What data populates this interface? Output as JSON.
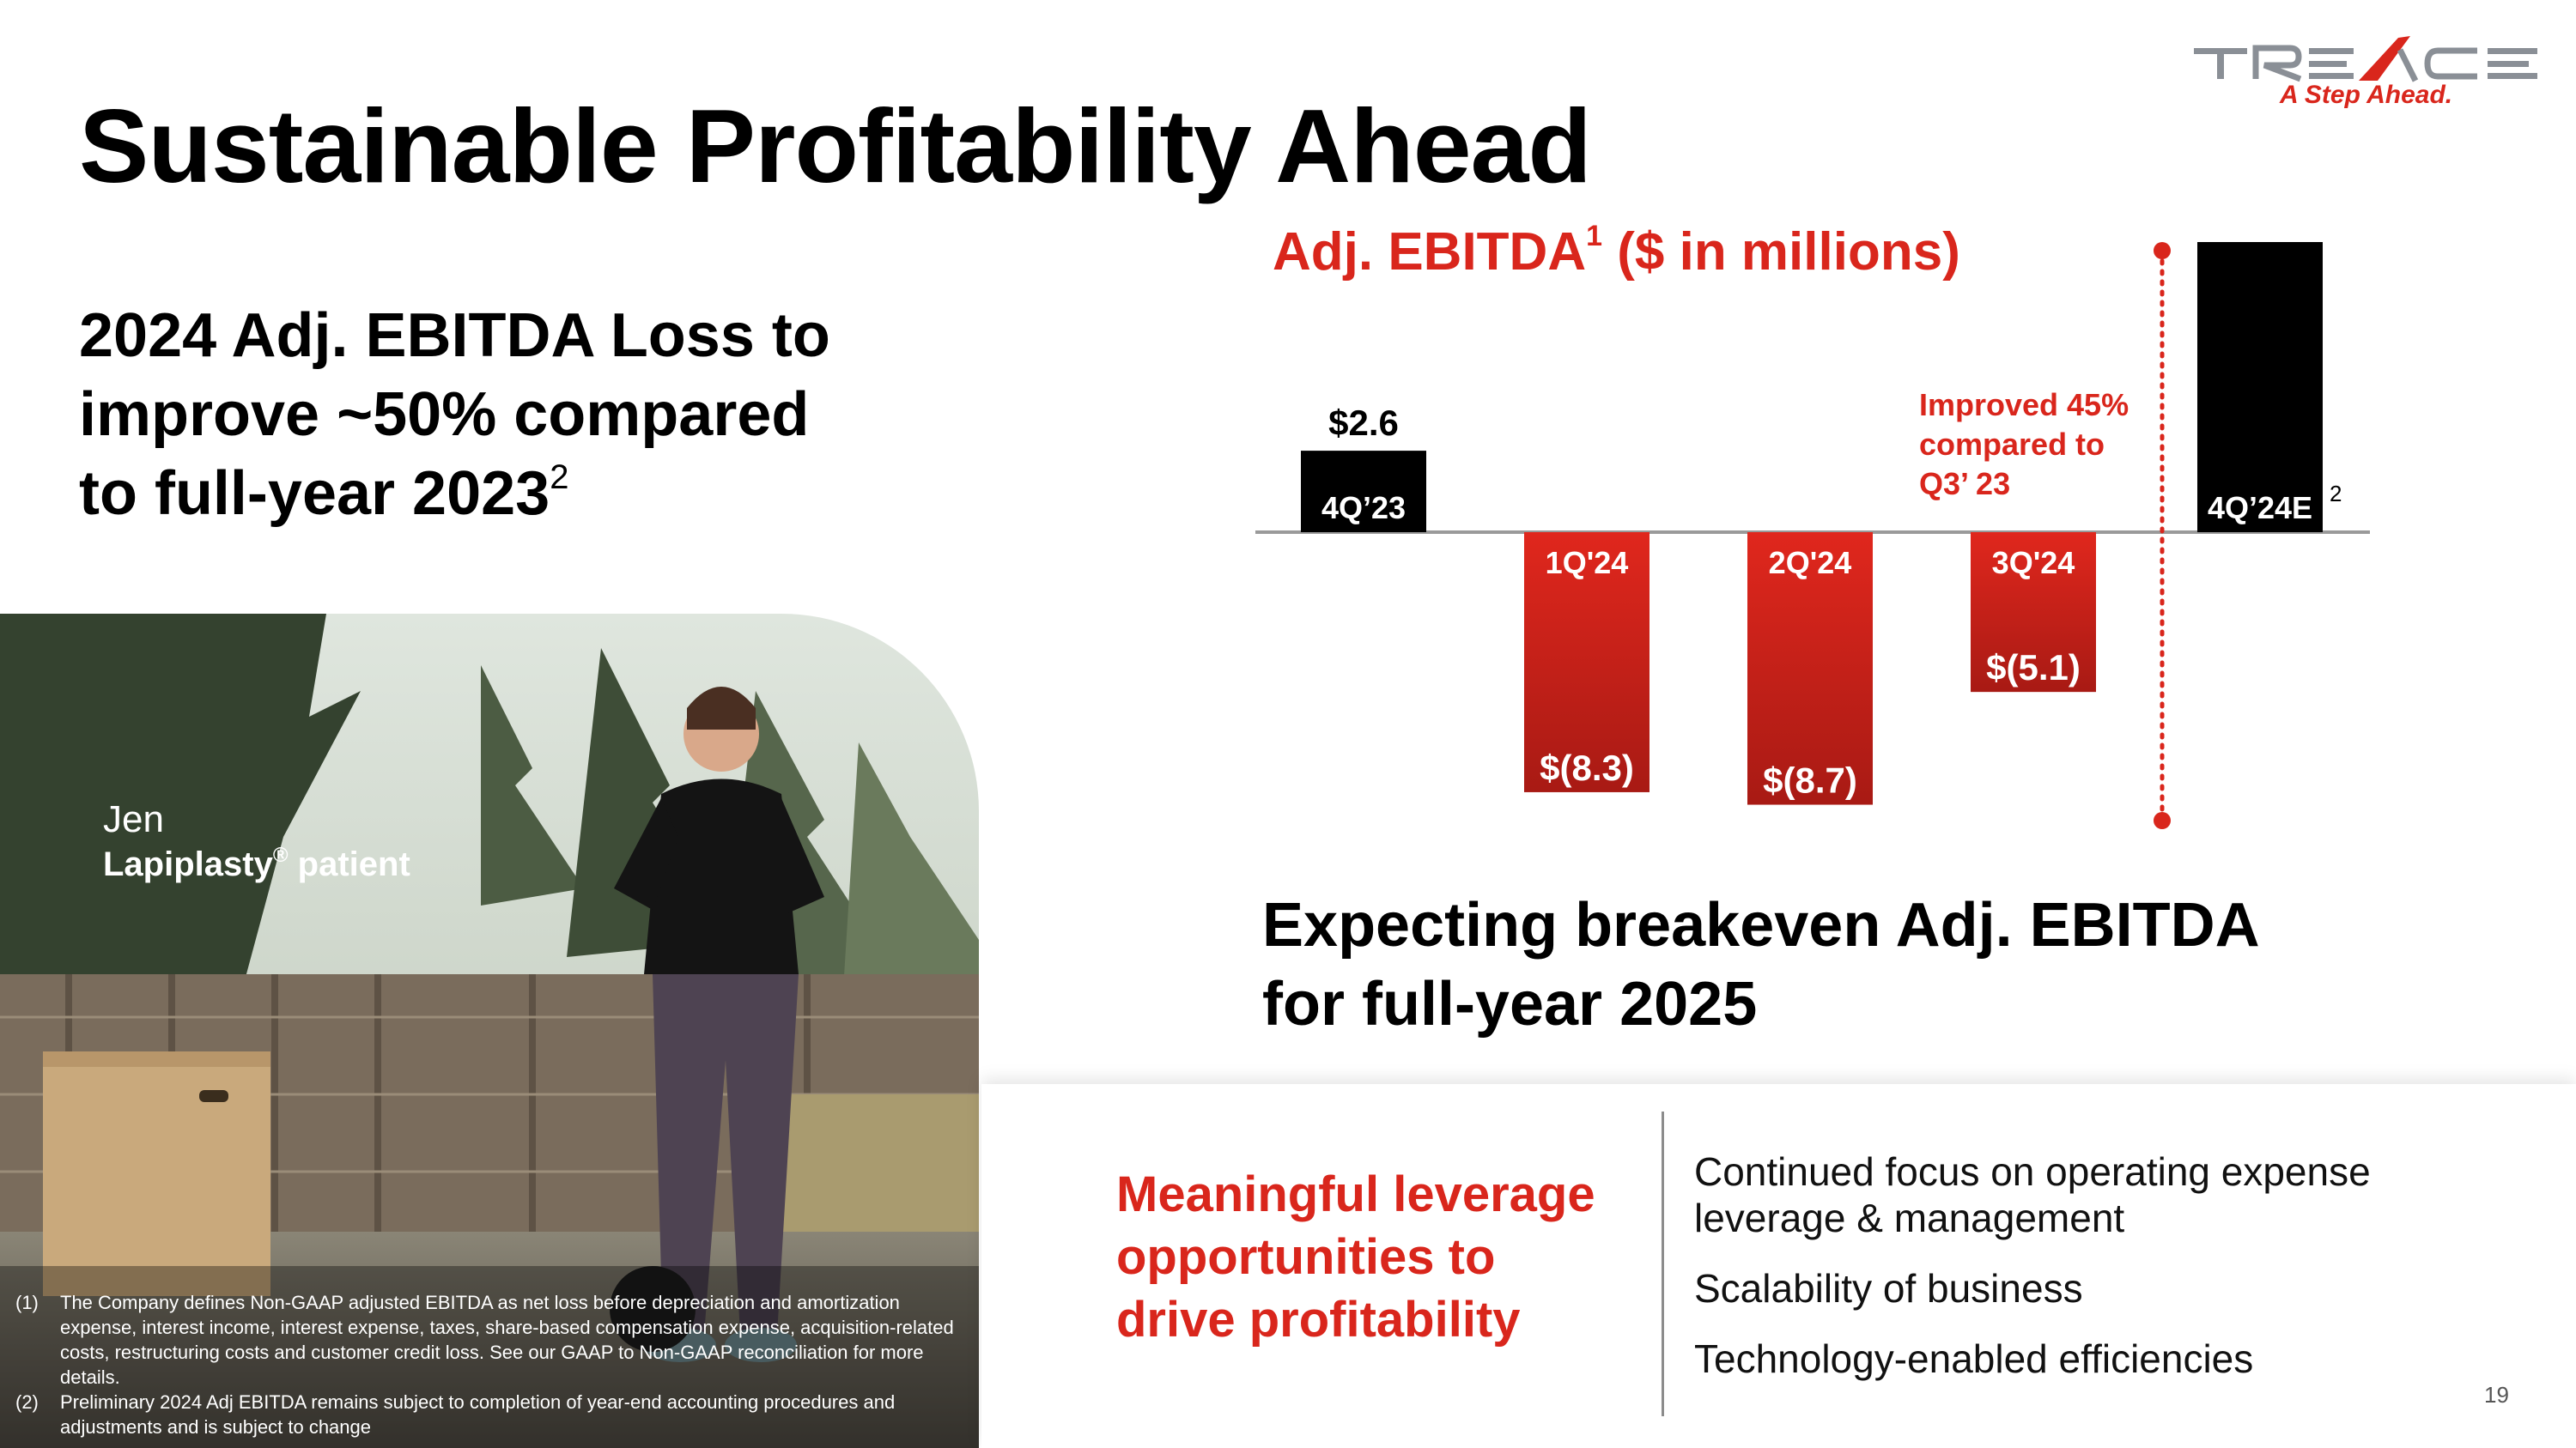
{
  "title": "Sustainable Profitability Ahead",
  "logo": {
    "brand": "TREACE",
    "tagline": "A Step Ahead.",
    "colors": {
      "gray": "#8a8f96",
      "red": "#d9261c"
    }
  },
  "headline": {
    "line1": "2024 Adj. EBITDA Loss to",
    "line2": "improve ~50% compared",
    "line3": "to full-year 2023",
    "footnote_ref": "2"
  },
  "photo_caption": {
    "name": "Jen",
    "label_pre": "Lapiplasty",
    "reg_mark": "®",
    "label_post": " patient"
  },
  "footnotes": [
    {
      "num": "(1)",
      "text": "The Company defines Non-GAAP adjusted EBITDA as net loss before depreciation and amortization expense, interest income, interest expense, taxes, share-based compensation expense, acquisition-related costs, restructuring costs and customer credit loss. See our GAAP to Non-GAAP reconciliation for more details."
    },
    {
      "num": "(2)",
      "text": "Preliminary 2024 Adj EBITDA remains subject to completion of year-end accounting procedures and adjustments and is subject to change"
    }
  ],
  "chart_title": {
    "text": "Adj. EBITDA",
    "sup": "1",
    "rest": " ($ in millions)"
  },
  "chart_data": {
    "type": "bar",
    "title": "Adj. EBITDA ($ in millions)",
    "unit": "$ millions",
    "categories": [
      "4Q'23",
      "1Q'24",
      "2Q'24",
      "3Q'24",
      "4Q'24E"
    ],
    "category_labels": [
      "4Q’23",
      "1Q'24",
      "2Q'24",
      "3Q'24",
      "4Q’24E"
    ],
    "values": [
      2.6,
      -8.3,
      -8.7,
      -5.1,
      null
    ],
    "value_labels": [
      "$2.6",
      "$(8.3)",
      "$(8.7)",
      "$(5.1)",
      ""
    ],
    "estimate_footnote": "2",
    "annotation": {
      "lines": [
        "Improved 45%",
        "compared to",
        "Q3’ 23"
      ]
    },
    "colors": {
      "positive": "#000000",
      "negative_top": "#e0271d",
      "negative_bottom": "#a81a14",
      "accent": "#d9261c",
      "baseline": "#9a9a9a"
    },
    "legend": "none",
    "grid": false
  },
  "expecting": {
    "line1": "Expecting breakeven Adj. EBITDA",
    "line2": "for full-year 2025"
  },
  "leverage": {
    "line1": "Meaningful leverage",
    "line2": "opportunities to",
    "line3": "drive profitability"
  },
  "points": [
    "Continued focus on operating expense leverage & management",
    "Scalability of business",
    "Technology-enabled efficiencies"
  ],
  "page_number": "19"
}
